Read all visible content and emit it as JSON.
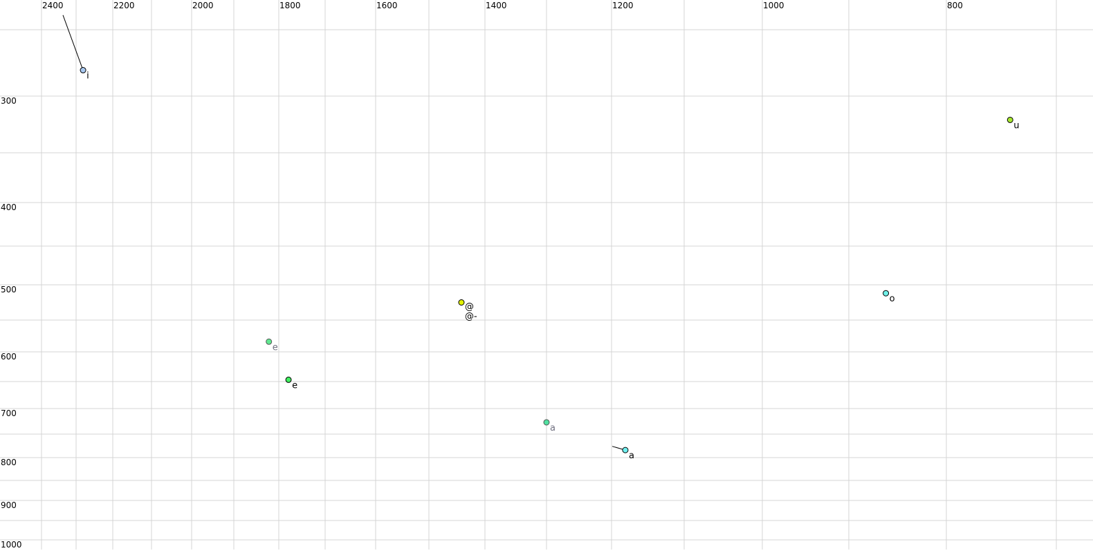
{
  "chart_data": {
    "type": "scatter",
    "title": "",
    "xlabel": "",
    "ylabel": "",
    "x_reversed": true,
    "y_reversed": true,
    "grid": true,
    "xlim": [
      2400,
      700
    ],
    "ylim": [
      200,
      1000
    ],
    "x_ticks": [
      "2400",
      "2200",
      "2000",
      "1800",
      "1600",
      "1400",
      "1200",
      "1000",
      "800"
    ],
    "y_ticks": [
      "300",
      "400",
      "500",
      "600",
      "700",
      "800",
      "900",
      "1000"
    ],
    "points": [
      {
        "label": "i",
        "x": 2281,
        "y": 261,
        "color": "#a8c8f0",
        "label_color": "#000000",
        "trail_from": {
          "x": 2338,
          "y": 180
        }
      },
      {
        "label": "u",
        "x": 742,
        "y": 321,
        "color": "#a8e830",
        "label_color": "#000000"
      },
      {
        "label": "@",
        "x": 1442,
        "y": 525,
        "color": "#e0f000",
        "label_color": "#000000",
        "extra_label": "@-"
      },
      {
        "label": "o",
        "x": 862,
        "y": 512,
        "color": "#70f0e8",
        "label_color": "#000000"
      },
      {
        "label": "e",
        "x": 1822,
        "y": 584,
        "color": "#60e890",
        "label_color": "#707080",
        "muted": true
      },
      {
        "label": "e",
        "x": 1779,
        "y": 647,
        "color": "#40f060",
        "label_color": "#000000"
      },
      {
        "label": "a",
        "x": 1300,
        "y": 727,
        "color": "#50e0a0",
        "label_color": "#707080",
        "muted": true
      },
      {
        "label": "a",
        "x": 1181,
        "y": 784,
        "color": "#70f0f0",
        "label_color": "#000000",
        "trail_from": {
          "x": 1199,
          "y": 776
        }
      }
    ]
  }
}
